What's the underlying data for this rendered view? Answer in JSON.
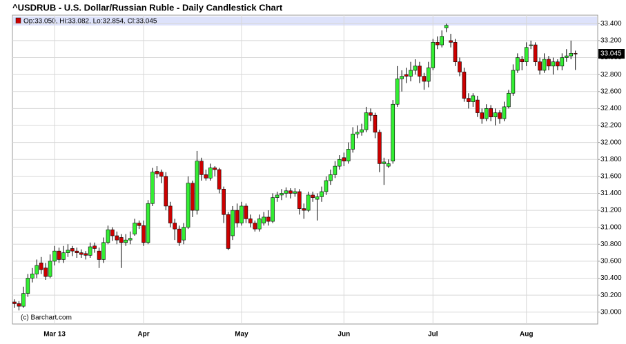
{
  "chart_data": {
    "type": "candlestick",
    "title": "^USDRUB - U.S. Dollar/Russian Ruble - Daily Candlestick Chart",
    "info": "Op:33.050, Hi:33.082, Lo:32.854, Cl:33.045",
    "credit": "(c) Barchart.com",
    "up_color": "#33ee33",
    "down_color": "#cc0000",
    "grid": true,
    "ylim": [
      29.86,
      33.5
    ],
    "yticks": [
      {
        "value": 30,
        "label": "30.000"
      },
      {
        "value": 30.2,
        "label": "30.200"
      },
      {
        "value": 30.4,
        "label": "30.400"
      },
      {
        "value": 30.6,
        "label": "30.600"
      },
      {
        "value": 30.8,
        "label": "30.800"
      },
      {
        "value": 31,
        "label": "31.000"
      },
      {
        "value": 31.2,
        "label": "31.200"
      },
      {
        "value": 31.4,
        "label": "31.400"
      },
      {
        "value": 31.6,
        "label": "31.600"
      },
      {
        "value": 31.8,
        "label": "31.800"
      },
      {
        "value": 32,
        "label": "32.000"
      },
      {
        "value": 32.2,
        "label": "32.200"
      },
      {
        "value": 32.4,
        "label": "32.400"
      },
      {
        "value": 32.6,
        "label": "32.600"
      },
      {
        "value": 32.8,
        "label": "32.800"
      },
      {
        "value": 33,
        "label": "33.000"
      },
      {
        "value": 33.2,
        "label": "33.200"
      },
      {
        "value": 33.4,
        "label": "33.400"
      }
    ],
    "last_price": {
      "value": 33.045,
      "label": "33.045"
    },
    "categories": [
      null,
      null,
      null,
      null,
      null,
      null,
      null,
      null,
      null,
      "Mar 13",
      null,
      null,
      null,
      null,
      null,
      null,
      null,
      null,
      null,
      null,
      null,
      null,
      null,
      null,
      null,
      null,
      null,
      null,
      null,
      "Apr",
      null,
      null,
      null,
      null,
      null,
      null,
      null,
      null,
      null,
      null,
      null,
      null,
      null,
      null,
      null,
      null,
      null,
      null,
      null,
      null,
      null,
      "May",
      null,
      null,
      null,
      null,
      null,
      null,
      null,
      null,
      null,
      null,
      null,
      null,
      null,
      null,
      null,
      null,
      null,
      null,
      null,
      null,
      null,
      null,
      "Jun",
      null,
      null,
      null,
      null,
      null,
      null,
      null,
      null,
      null,
      null,
      null,
      null,
      null,
      null,
      null,
      null,
      null,
      null,
      null,
      "Jul",
      null,
      null,
      null,
      null,
      null,
      null,
      null,
      null,
      null,
      null,
      null,
      null,
      null,
      null,
      null,
      null,
      null,
      null,
      null,
      null,
      "Aug",
      null,
      null,
      null,
      null,
      null,
      null,
      null,
      null,
      null,
      null
    ],
    "ohlc": [
      [
        30.12,
        30.15,
        30.05,
        30.1
      ],
      [
        30.1,
        30.13,
        30.02,
        30.07
      ],
      [
        30.07,
        30.3,
        30.05,
        30.22
      ],
      [
        30.22,
        30.45,
        30.18,
        30.4
      ],
      [
        30.4,
        30.52,
        30.35,
        30.45
      ],
      [
        30.45,
        30.62,
        30.4,
        30.55
      ],
      [
        30.58,
        30.65,
        30.45,
        30.5
      ],
      [
        30.52,
        30.58,
        30.38,
        30.42
      ],
      [
        30.42,
        30.68,
        30.4,
        30.6
      ],
      [
        30.6,
        30.78,
        30.55,
        30.72
      ],
      [
        30.72,
        30.76,
        30.58,
        30.62
      ],
      [
        30.62,
        30.78,
        30.58,
        30.7
      ],
      [
        30.7,
        30.8,
        30.65,
        30.73
      ],
      [
        30.75,
        30.78,
        30.66,
        30.72
      ],
      [
        30.72,
        30.76,
        30.64,
        30.7
      ],
      [
        30.7,
        30.74,
        30.64,
        30.68
      ],
      [
        30.69,
        30.72,
        30.62,
        30.67
      ],
      [
        30.67,
        30.82,
        30.64,
        30.77
      ],
      [
        30.78,
        30.82,
        30.7,
        30.75
      ],
      [
        30.72,
        30.76,
        30.52,
        30.62
      ],
      [
        30.62,
        30.88,
        30.58,
        30.82
      ],
      [
        30.82,
        31.02,
        30.8,
        30.97
      ],
      [
        30.97,
        31.0,
        30.84,
        30.9
      ],
      [
        30.9,
        30.95,
        30.8,
        30.85
      ],
      [
        30.88,
        30.92,
        30.52,
        30.82
      ],
      [
        30.82,
        30.92,
        30.78,
        30.85
      ],
      [
        30.85,
        30.95,
        30.8,
        30.87
      ],
      [
        30.92,
        31.1,
        30.9,
        31.05
      ],
      [
        31.05,
        31.08,
        30.98,
        31.02
      ],
      [
        31.02,
        31.08,
        30.78,
        30.82
      ],
      [
        30.82,
        31.32,
        30.8,
        31.28
      ],
      [
        31.28,
        31.7,
        31.25,
        31.65
      ],
      [
        31.66,
        31.72,
        31.58,
        31.63
      ],
      [
        31.65,
        31.68,
        31.52,
        31.6
      ],
      [
        31.6,
        31.65,
        31.2,
        31.25
      ],
      [
        31.25,
        31.3,
        31.0,
        31.05
      ],
      [
        31.05,
        31.1,
        30.85,
        30.98
      ],
      [
        30.98,
        31.02,
        30.78,
        30.82
      ],
      [
        30.85,
        31.05,
        30.8,
        31.0
      ],
      [
        31.0,
        31.6,
        30.98,
        31.52
      ],
      [
        31.52,
        31.55,
        31.12,
        31.2
      ],
      [
        31.2,
        31.9,
        31.15,
        31.78
      ],
      [
        31.78,
        31.82,
        31.55,
        31.62
      ],
      [
        31.62,
        31.68,
        31.55,
        31.58
      ],
      [
        31.58,
        31.75,
        31.55,
        31.7
      ],
      [
        31.7,
        31.72,
        31.6,
        31.68
      ],
      [
        31.68,
        31.7,
        31.4,
        31.45
      ],
      [
        31.45,
        31.48,
        31.05,
        31.15
      ],
      [
        31.15,
        31.18,
        30.73,
        30.75
      ],
      [
        30.9,
        31.25,
        30.85,
        31.2
      ],
      [
        31.2,
        31.28,
        31.0,
        31.05
      ],
      [
        31.05,
        31.3,
        31.02,
        31.25
      ],
      [
        31.25,
        31.28,
        31.05,
        31.1
      ],
      [
        31.1,
        31.15,
        31.0,
        31.05
      ],
      [
        31.05,
        31.08,
        30.95,
        30.98
      ],
      [
        30.98,
        31.15,
        30.95,
        31.1
      ],
      [
        31.05,
        31.18,
        31.02,
        31.12
      ],
      [
        31.12,
        31.2,
        31.02,
        31.07
      ],
      [
        31.07,
        31.4,
        31.05,
        31.35
      ],
      [
        31.35,
        31.42,
        31.3,
        31.38
      ],
      [
        31.38,
        31.45,
        31.32,
        31.4
      ],
      [
        31.4,
        31.47,
        31.35,
        31.43
      ],
      [
        31.43,
        31.46,
        31.34,
        31.4
      ],
      [
        31.4,
        31.46,
        31.36,
        31.42
      ],
      [
        31.42,
        31.45,
        31.15,
        31.22
      ],
      [
        31.22,
        31.28,
        31.1,
        31.2
      ],
      [
        31.2,
        31.42,
        31.18,
        31.38
      ],
      [
        31.38,
        31.42,
        31.3,
        31.35
      ],
      [
        31.33,
        31.4,
        31.08,
        31.36
      ],
      [
        31.36,
        31.48,
        31.3,
        31.42
      ],
      [
        31.42,
        31.6,
        31.38,
        31.55
      ],
      [
        31.55,
        31.68,
        31.5,
        31.62
      ],
      [
        31.62,
        31.78,
        31.58,
        31.72
      ],
      [
        31.72,
        31.85,
        31.68,
        31.8
      ],
      [
        31.82,
        31.88,
        31.72,
        31.78
      ],
      [
        31.78,
        32.0,
        31.75,
        31.92
      ],
      [
        31.92,
        32.18,
        31.88,
        32.1
      ],
      [
        32.1,
        32.2,
        32.05,
        32.12
      ],
      [
        32.12,
        32.22,
        32.08,
        32.15
      ],
      [
        32.15,
        32.42,
        32.12,
        32.35
      ],
      [
        32.35,
        32.4,
        32.25,
        32.32
      ],
      [
        32.32,
        32.35,
        32.05,
        32.12
      ],
      [
        32.12,
        32.15,
        31.65,
        31.75
      ],
      [
        31.75,
        31.82,
        31.5,
        31.77
      ],
      [
        31.72,
        31.8,
        31.7,
        31.75
      ],
      [
        31.78,
        32.5,
        31.75,
        32.45
      ],
      [
        32.45,
        32.9,
        32.42,
        32.75
      ],
      [
        32.75,
        32.85,
        32.6,
        32.78
      ],
      [
        32.8,
        32.88,
        32.7,
        32.78
      ],
      [
        32.78,
        32.95,
        32.72,
        32.85
      ],
      [
        32.85,
        32.98,
        32.8,
        32.9
      ],
      [
        32.9,
        32.95,
        32.7,
        32.78
      ],
      [
        32.78,
        32.82,
        32.62,
        32.72
      ],
      [
        32.72,
        32.95,
        32.65,
        32.88
      ],
      [
        32.88,
        33.22,
        32.85,
        33.18
      ],
      [
        33.18,
        33.25,
        33.1,
        33.15
      ],
      [
        33.15,
        33.32,
        33.12,
        33.25
      ],
      [
        33.35,
        33.4,
        33.3,
        33.38
      ],
      [
        33.2,
        33.28,
        33.12,
        33.18
      ],
      [
        33.18,
        33.22,
        32.9,
        32.95
      ],
      [
        32.95,
        33.0,
        32.78,
        32.83
      ],
      [
        32.83,
        32.88,
        32.48,
        32.52
      ],
      [
        32.52,
        32.58,
        32.4,
        32.48
      ],
      [
        32.48,
        32.58,
        32.42,
        32.55
      ],
      [
        32.5,
        32.55,
        32.3,
        32.35
      ],
      [
        32.35,
        32.4,
        32.22,
        32.28
      ],
      [
        32.28,
        32.45,
        32.25,
        32.4
      ],
      [
        32.4,
        32.44,
        32.25,
        32.3
      ],
      [
        32.3,
        32.4,
        32.2,
        32.35
      ],
      [
        32.35,
        32.38,
        32.22,
        32.28
      ],
      [
        32.28,
        32.48,
        32.25,
        32.42
      ],
      [
        32.42,
        32.62,
        32.4,
        32.58
      ],
      [
        32.58,
        32.92,
        32.55,
        32.85
      ],
      [
        32.85,
        33.05,
        32.82,
        33.0
      ],
      [
        32.98,
        33.02,
        32.85,
        32.95
      ],
      [
        32.95,
        33.18,
        32.9,
        33.12
      ],
      [
        33.15,
        33.2,
        33.1,
        33.15
      ],
      [
        33.15,
        33.18,
        32.9,
        32.95
      ],
      [
        32.95,
        33.0,
        32.8,
        32.85
      ],
      [
        32.85,
        33.05,
        32.82,
        32.98
      ],
      [
        32.98,
        33.02,
        32.85,
        32.9
      ],
      [
        32.9,
        33.0,
        32.8,
        32.95
      ],
      [
        32.95,
        32.98,
        32.85,
        32.9
      ],
      [
        32.9,
        33.05,
        32.85,
        33.0
      ],
      [
        33.0,
        33.1,
        32.95,
        33.02
      ],
      [
        33.02,
        33.2,
        32.98,
        33.05
      ],
      [
        33.05,
        33.082,
        32.854,
        33.045
      ]
    ]
  }
}
